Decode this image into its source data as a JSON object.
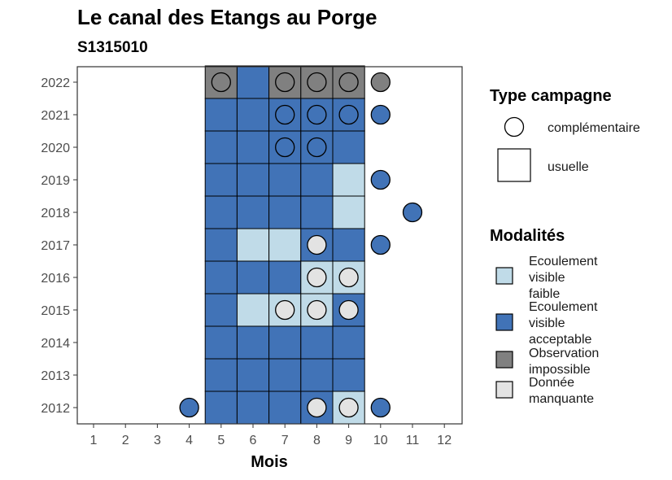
{
  "chart_data": {
    "type": "heatmap",
    "title": "Le canal des Etangs au Porge",
    "subtitle": "S1315010",
    "xlabel": "Mois",
    "ylabel": "",
    "x_ticks": [
      "1",
      "2",
      "3",
      "4",
      "5",
      "6",
      "7",
      "8",
      "9",
      "10",
      "11",
      "12"
    ],
    "y_ticks": [
      "2012",
      "2013",
      "2014",
      "2015",
      "2016",
      "2017",
      "2018",
      "2019",
      "2020",
      "2021",
      "2022"
    ],
    "colors": {
      "Ecoulement visible faible": "#c0dbe8",
      "Ecoulement visible acceptable": "#4173b7",
      "Observation impossible": "#808080",
      "Donnée manquante": "#e3e3e3"
    },
    "cells": [
      {
        "year": 2022,
        "month": 5,
        "modalite": "Observation impossible",
        "campagne": "usuelle"
      },
      {
        "year": 2022,
        "month": 6,
        "modalite": "Ecoulement visible acceptable",
        "campagne": "usuelle"
      },
      {
        "year": 2022,
        "month": 7,
        "modalite": "Observation impossible",
        "campagne": "usuelle"
      },
      {
        "year": 2022,
        "month": 8,
        "modalite": "Observation impossible",
        "campagne": "usuelle"
      },
      {
        "year": 2022,
        "month": 9,
        "modalite": "Observation impossible",
        "campagne": "usuelle"
      },
      {
        "year": 2021,
        "month": 5,
        "modalite": "Ecoulement visible acceptable",
        "campagne": "usuelle"
      },
      {
        "year": 2021,
        "month": 6,
        "modalite": "Ecoulement visible acceptable",
        "campagne": "usuelle"
      },
      {
        "year": 2021,
        "month": 7,
        "modalite": "Ecoulement visible acceptable",
        "campagne": "usuelle"
      },
      {
        "year": 2021,
        "month": 8,
        "modalite": "Ecoulement visible acceptable",
        "campagne": "usuelle"
      },
      {
        "year": 2021,
        "month": 9,
        "modalite": "Ecoulement visible acceptable",
        "campagne": "usuelle"
      },
      {
        "year": 2020,
        "month": 5,
        "modalite": "Ecoulement visible acceptable",
        "campagne": "usuelle"
      },
      {
        "year": 2020,
        "month": 6,
        "modalite": "Ecoulement visible acceptable",
        "campagne": "usuelle"
      },
      {
        "year": 2020,
        "month": 7,
        "modalite": "Ecoulement visible acceptable",
        "campagne": "usuelle"
      },
      {
        "year": 2020,
        "month": 8,
        "modalite": "Ecoulement visible acceptable",
        "campagne": "usuelle"
      },
      {
        "year": 2020,
        "month": 9,
        "modalite": "Ecoulement visible acceptable",
        "campagne": "usuelle"
      },
      {
        "year": 2019,
        "month": 5,
        "modalite": "Ecoulement visible acceptable",
        "campagne": "usuelle"
      },
      {
        "year": 2019,
        "month": 6,
        "modalite": "Ecoulement visible acceptable",
        "campagne": "usuelle"
      },
      {
        "year": 2019,
        "month": 7,
        "modalite": "Ecoulement visible acceptable",
        "campagne": "usuelle"
      },
      {
        "year": 2019,
        "month": 8,
        "modalite": "Ecoulement visible acceptable",
        "campagne": "usuelle"
      },
      {
        "year": 2019,
        "month": 9,
        "modalite": "Ecoulement visible faible",
        "campagne": "usuelle"
      },
      {
        "year": 2018,
        "month": 5,
        "modalite": "Ecoulement visible acceptable",
        "campagne": "usuelle"
      },
      {
        "year": 2018,
        "month": 6,
        "modalite": "Ecoulement visible acceptable",
        "campagne": "usuelle"
      },
      {
        "year": 2018,
        "month": 7,
        "modalite": "Ecoulement visible acceptable",
        "campagne": "usuelle"
      },
      {
        "year": 2018,
        "month": 8,
        "modalite": "Ecoulement visible acceptable",
        "campagne": "usuelle"
      },
      {
        "year": 2018,
        "month": 9,
        "modalite": "Ecoulement visible faible",
        "campagne": "usuelle"
      },
      {
        "year": 2017,
        "month": 5,
        "modalite": "Ecoulement visible acceptable",
        "campagne": "usuelle"
      },
      {
        "year": 2017,
        "month": 6,
        "modalite": "Ecoulement visible faible",
        "campagne": "usuelle"
      },
      {
        "year": 2017,
        "month": 7,
        "modalite": "Ecoulement visible faible",
        "campagne": "usuelle"
      },
      {
        "year": 2017,
        "month": 8,
        "modalite": "Ecoulement visible acceptable",
        "campagne": "usuelle"
      },
      {
        "year": 2017,
        "month": 9,
        "modalite": "Ecoulement visible acceptable",
        "campagne": "usuelle"
      },
      {
        "year": 2016,
        "month": 5,
        "modalite": "Ecoulement visible acceptable",
        "campagne": "usuelle"
      },
      {
        "year": 2016,
        "month": 6,
        "modalite": "Ecoulement visible acceptable",
        "campagne": "usuelle"
      },
      {
        "year": 2016,
        "month": 7,
        "modalite": "Ecoulement visible acceptable",
        "campagne": "usuelle"
      },
      {
        "year": 2016,
        "month": 8,
        "modalite": "Ecoulement visible faible",
        "campagne": "usuelle"
      },
      {
        "year": 2016,
        "month": 9,
        "modalite": "Ecoulement visible faible",
        "campagne": "usuelle"
      },
      {
        "year": 2015,
        "month": 5,
        "modalite": "Ecoulement visible acceptable",
        "campagne": "usuelle"
      },
      {
        "year": 2015,
        "month": 6,
        "modalite": "Ecoulement visible faible",
        "campagne": "usuelle"
      },
      {
        "year": 2015,
        "month": 7,
        "modalite": "Ecoulement visible faible",
        "campagne": "usuelle"
      },
      {
        "year": 2015,
        "month": 8,
        "modalite": "Ecoulement visible faible",
        "campagne": "usuelle"
      },
      {
        "year": 2015,
        "month": 9,
        "modalite": "Ecoulement visible acceptable",
        "campagne": "usuelle"
      },
      {
        "year": 2014,
        "month": 5,
        "modalite": "Ecoulement visible acceptable",
        "campagne": "usuelle"
      },
      {
        "year": 2014,
        "month": 6,
        "modalite": "Ecoulement visible acceptable",
        "campagne": "usuelle"
      },
      {
        "year": 2014,
        "month": 7,
        "modalite": "Ecoulement visible acceptable",
        "campagne": "usuelle"
      },
      {
        "year": 2014,
        "month": 8,
        "modalite": "Ecoulement visible acceptable",
        "campagne": "usuelle"
      },
      {
        "year": 2014,
        "month": 9,
        "modalite": "Ecoulement visible acceptable",
        "campagne": "usuelle"
      },
      {
        "year": 2013,
        "month": 5,
        "modalite": "Ecoulement visible acceptable",
        "campagne": "usuelle"
      },
      {
        "year": 2013,
        "month": 6,
        "modalite": "Ecoulement visible acceptable",
        "campagne": "usuelle"
      },
      {
        "year": 2013,
        "month": 7,
        "modalite": "Ecoulement visible acceptable",
        "campagne": "usuelle"
      },
      {
        "year": 2013,
        "month": 8,
        "modalite": "Ecoulement visible acceptable",
        "campagne": "usuelle"
      },
      {
        "year": 2013,
        "month": 9,
        "modalite": "Ecoulement visible acceptable",
        "campagne": "usuelle"
      },
      {
        "year": 2012,
        "month": 5,
        "modalite": "Ecoulement visible acceptable",
        "campagne": "usuelle"
      },
      {
        "year": 2012,
        "month": 6,
        "modalite": "Ecoulement visible acceptable",
        "campagne": "usuelle"
      },
      {
        "year": 2012,
        "month": 7,
        "modalite": "Ecoulement visible acceptable",
        "campagne": "usuelle"
      },
      {
        "year": 2012,
        "month": 8,
        "modalite": "Ecoulement visible acceptable",
        "campagne": "usuelle"
      },
      {
        "year": 2012,
        "month": 9,
        "modalite": "Ecoulement visible faible",
        "campagne": "usuelle"
      }
    ],
    "points": [
      {
        "year": 2022,
        "month": 5,
        "modalite": "Observation impossible",
        "campagne": "complémentaire"
      },
      {
        "year": 2022,
        "month": 7,
        "modalite": "Observation impossible",
        "campagne": "complémentaire"
      },
      {
        "year": 2022,
        "month": 8,
        "modalite": "Observation impossible",
        "campagne": "complémentaire"
      },
      {
        "year": 2022,
        "month": 9,
        "modalite": "Observation impossible",
        "campagne": "complémentaire"
      },
      {
        "year": 2022,
        "month": 10,
        "modalite": "Observation impossible",
        "campagne": "complémentaire"
      },
      {
        "year": 2021,
        "month": 7,
        "modalite": "Ecoulement visible acceptable",
        "campagne": "complémentaire"
      },
      {
        "year": 2021,
        "month": 8,
        "modalite": "Ecoulement visible acceptable",
        "campagne": "complémentaire"
      },
      {
        "year": 2021,
        "month": 9,
        "modalite": "Ecoulement visible acceptable",
        "campagne": "complémentaire"
      },
      {
        "year": 2021,
        "month": 10,
        "modalite": "Ecoulement visible acceptable",
        "campagne": "complémentaire"
      },
      {
        "year": 2020,
        "month": 7,
        "modalite": "Ecoulement visible acceptable",
        "campagne": "complémentaire"
      },
      {
        "year": 2020,
        "month": 8,
        "modalite": "Ecoulement visible acceptable",
        "campagne": "complémentaire"
      },
      {
        "year": 2019,
        "month": 10,
        "modalite": "Ecoulement visible acceptable",
        "campagne": "complémentaire"
      },
      {
        "year": 2018,
        "month": 11,
        "modalite": "Ecoulement visible acceptable",
        "campagne": "complémentaire"
      },
      {
        "year": 2017,
        "month": 8,
        "modalite": "Donnée manquante",
        "campagne": "complémentaire"
      },
      {
        "year": 2017,
        "month": 10,
        "modalite": "Ecoulement visible acceptable",
        "campagne": "complémentaire"
      },
      {
        "year": 2016,
        "month": 8,
        "modalite": "Donnée manquante",
        "campagne": "complémentaire"
      },
      {
        "year": 2016,
        "month": 9,
        "modalite": "Donnée manquante",
        "campagne": "complémentaire"
      },
      {
        "year": 2015,
        "month": 7,
        "modalite": "Donnée manquante",
        "campagne": "complémentaire"
      },
      {
        "year": 2015,
        "month": 8,
        "modalite": "Donnée manquante",
        "campagne": "complémentaire"
      },
      {
        "year": 2015,
        "month": 9,
        "modalite": "Donnée manquante",
        "campagne": "complémentaire"
      },
      {
        "year": 2012,
        "month": 4,
        "modalite": "Ecoulement visible acceptable",
        "campagne": "complémentaire"
      },
      {
        "year": 2012,
        "month": 8,
        "modalite": "Donnée manquante",
        "campagne": "complémentaire"
      },
      {
        "year": 2012,
        "month": 9,
        "modalite": "Donnée manquante",
        "campagne": "complémentaire"
      },
      {
        "year": 2012,
        "month": 10,
        "modalite": "Ecoulement visible acceptable",
        "campagne": "complémentaire"
      }
    ],
    "legend": {
      "shape_title": "Type campagne",
      "shape_items": [
        "complémentaire",
        "usuelle"
      ],
      "fill_title": "Modalités",
      "fill_items": [
        {
          "key": "Ecoulement visible faible",
          "lines": [
            "Ecoulement",
            "visible",
            "faible"
          ]
        },
        {
          "key": "Ecoulement visible acceptable",
          "lines": [
            "Ecoulement",
            "visible",
            "acceptable"
          ]
        },
        {
          "key": "Observation impossible",
          "lines": [
            "Observation",
            "impossible"
          ]
        },
        {
          "key": "Donnée manquante",
          "lines": [
            "Donnée",
            "manquante"
          ]
        }
      ],
      "placement": "right"
    },
    "grid": false
  }
}
